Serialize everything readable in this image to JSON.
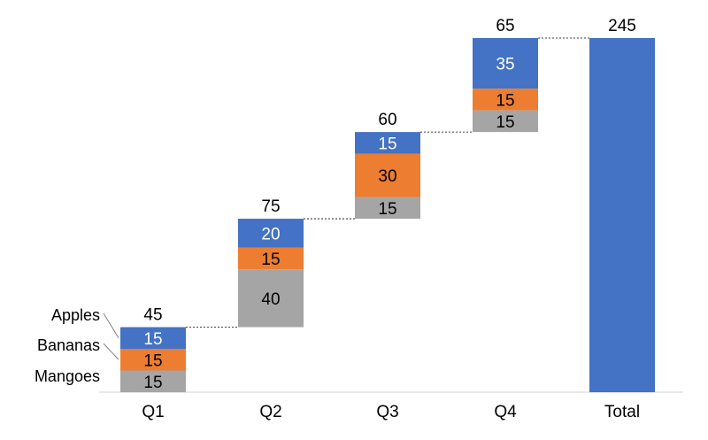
{
  "chart_data": {
    "type": "bar",
    "subtype": "stacked-waterfall",
    "categories": [
      "Q1",
      "Q2",
      "Q3",
      "Q4",
      "Total"
    ],
    "series": [
      {
        "name": "Mangoes",
        "values": [
          15,
          40,
          15,
          15,
          null
        ],
        "color": "#a5a5a5",
        "label_color": "#000000"
      },
      {
        "name": "Bananas",
        "values": [
          15,
          15,
          30,
          15,
          null
        ],
        "color": "#ed7d31",
        "label_color": "#000000"
      },
      {
        "name": "Apples",
        "values": [
          15,
          20,
          15,
          35,
          null
        ],
        "color": "#4472c4",
        "label_color": "#ffffff"
      }
    ],
    "totals": [
      45,
      75,
      60,
      65,
      245
    ],
    "total_color": "#4472c4",
    "ylim": [
      0,
      245
    ],
    "grid": false,
    "legend": "labels at left of first bar",
    "connectors": "dotted lines between bar tops",
    "title": "",
    "xlabel": "",
    "ylabel": ""
  }
}
